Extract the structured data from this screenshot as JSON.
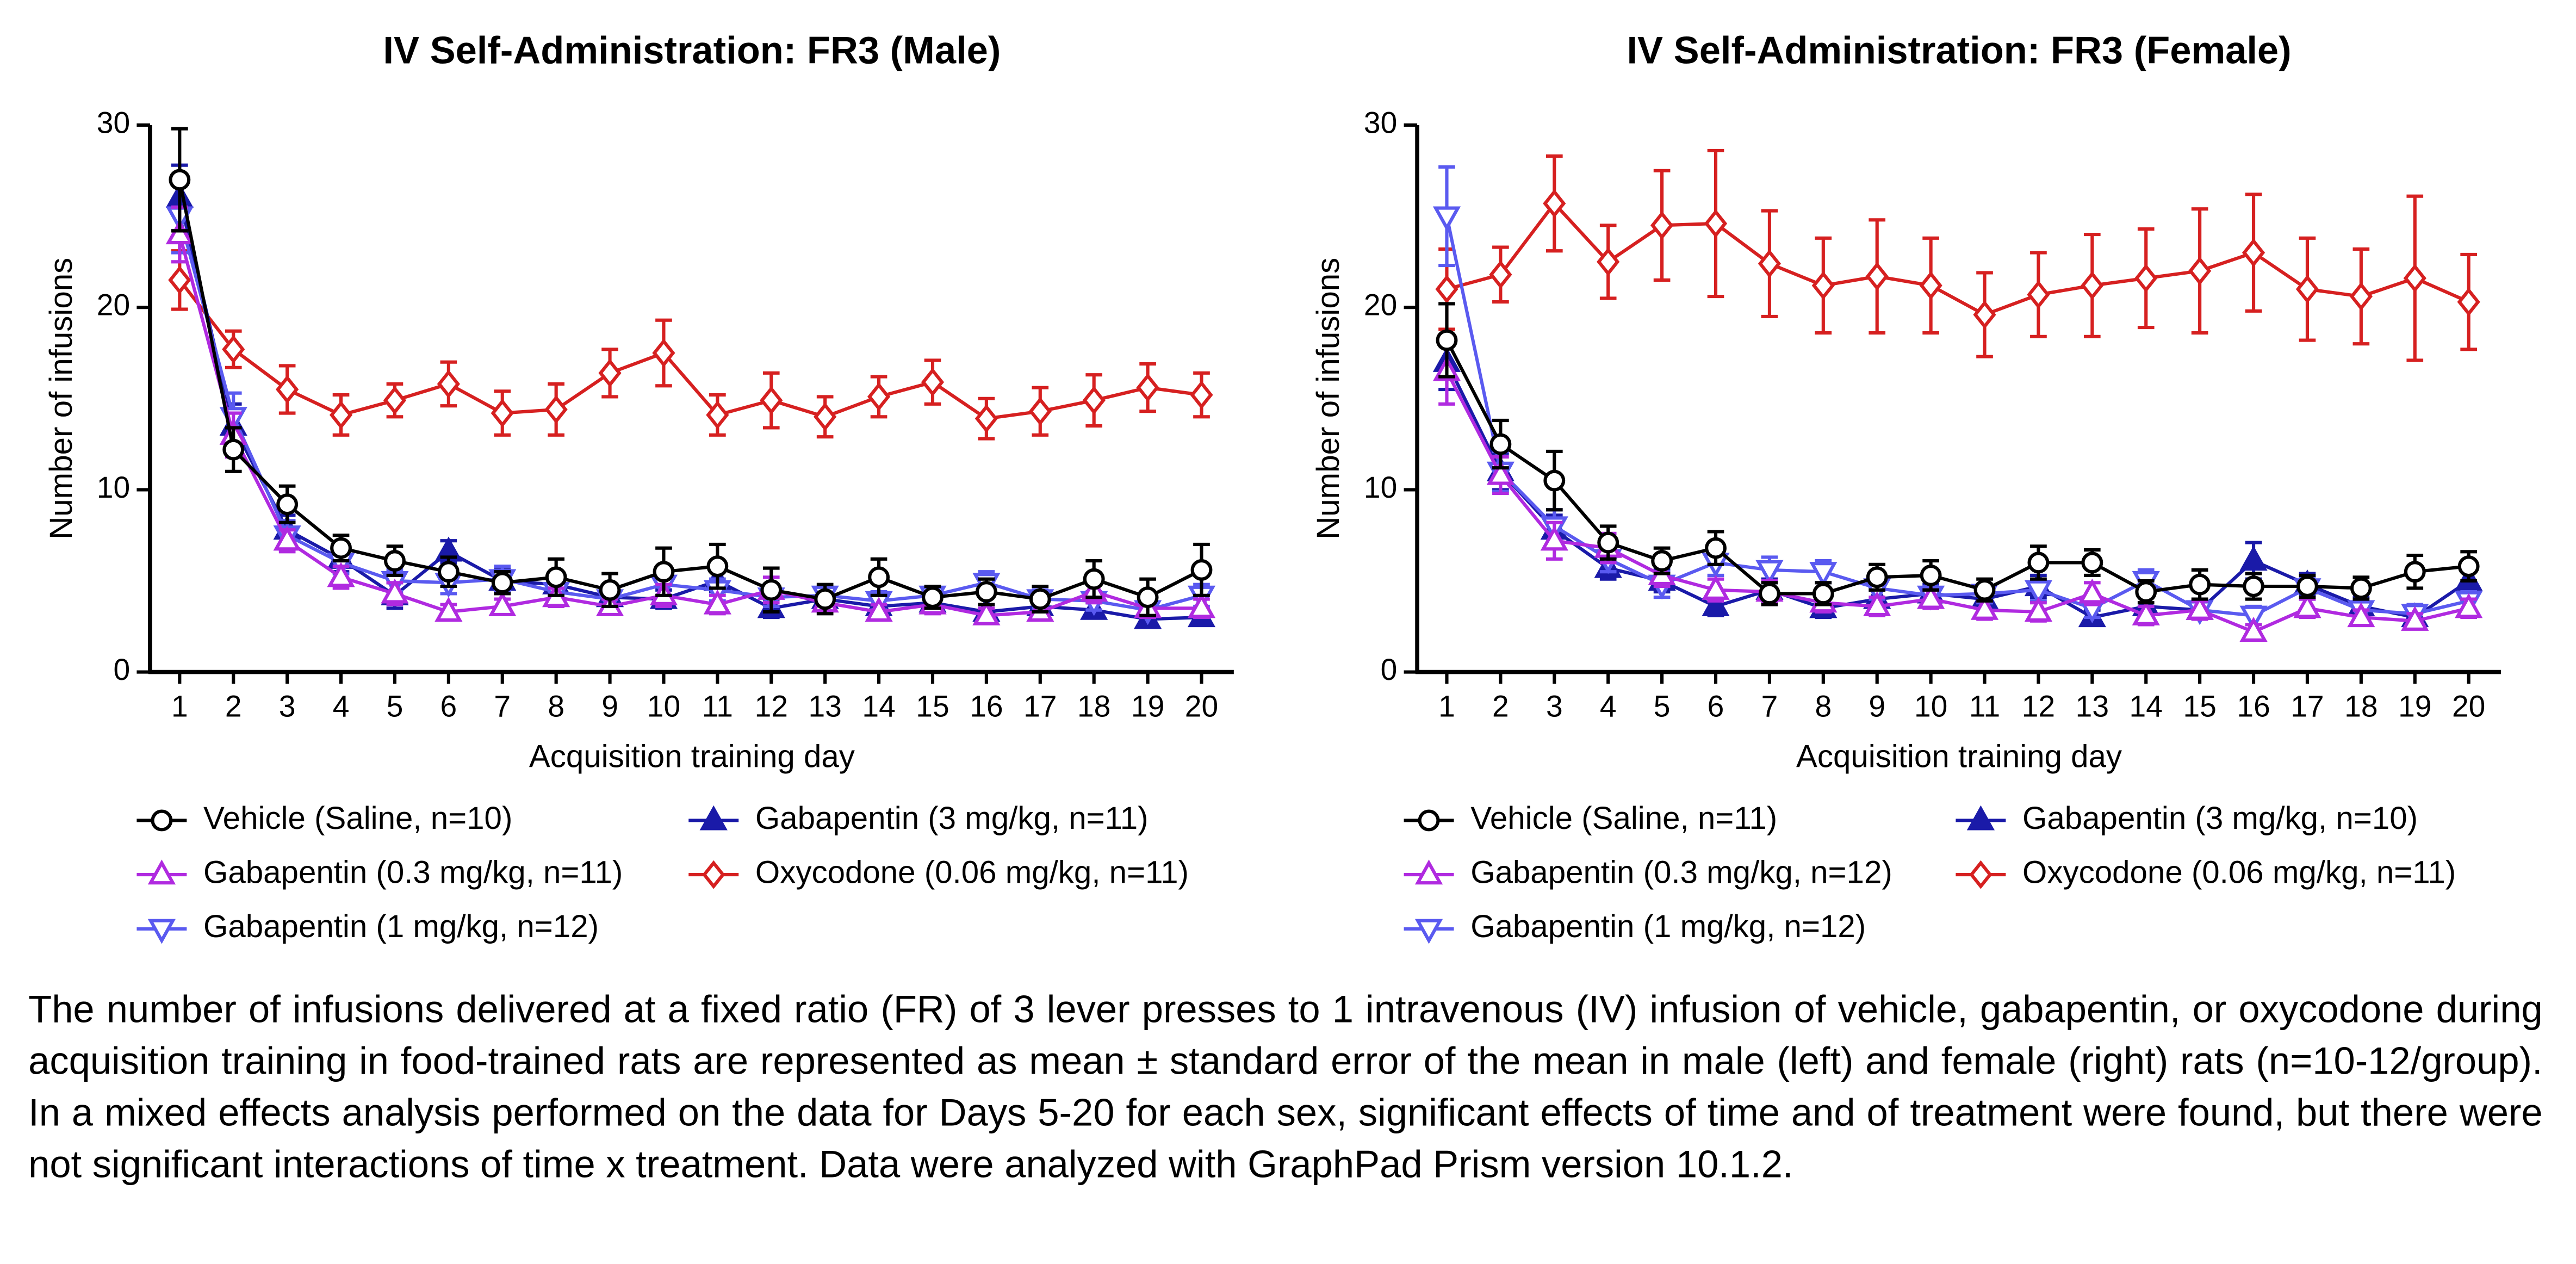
{
  "chart_data": [
    {
      "type": "line",
      "title": "IV Self-Administration: FR3 (Male)",
      "xlabel": "Acquisition training day",
      "ylabel": "Number of infusions",
      "x": [
        1,
        2,
        3,
        4,
        5,
        6,
        7,
        8,
        9,
        10,
        11,
        12,
        13,
        14,
        15,
        16,
        17,
        18,
        19,
        20
      ],
      "xlim": [
        0.45,
        20.6
      ],
      "xticks": [
        1,
        2,
        3,
        4,
        5,
        6,
        7,
        8,
        9,
        10,
        11,
        12,
        13,
        14,
        15,
        16,
        17,
        18,
        19,
        20
      ],
      "ylim": [
        0,
        30
      ],
      "yticks": [
        0,
        10,
        20,
        30
      ],
      "series": [
        {
          "name": "Vehicle (Saline, n=10)",
          "color": "#000000",
          "marker": "circle",
          "filled": false,
          "values": [
            27,
            12.2,
            9.2,
            6.8,
            6.1,
            5.5,
            4.9,
            5.2,
            4.5,
            5.5,
            5.8,
            4.5,
            4.0,
            5.2,
            4.1,
            4.4,
            4.0,
            5.1,
            4.1,
            5.6
          ],
          "errors": [
            2.8,
            1.2,
            1.0,
            0.7,
            0.8,
            0.8,
            0.6,
            1.0,
            0.9,
            1.3,
            1.2,
            1.2,
            0.8,
            1.0,
            0.6,
            0.7,
            0.7,
            1.0,
            1.0,
            1.4
          ]
        },
        {
          "name": "Gabapentin (0.3 mg/kg, n=11)",
          "color": "#b02ae0",
          "marker": "triangle-up",
          "filled": false,
          "values": [
            24,
            13,
            7.2,
            5.2,
            4.3,
            3.3,
            3.6,
            4.1,
            3.6,
            4.2,
            3.7,
            4.5,
            3.8,
            3.3,
            3.7,
            3.1,
            3.3,
            4.4,
            3.5,
            3.5
          ],
          "errors": [
            1.5,
            1.2,
            0.6,
            0.6,
            0.6,
            0.4,
            0.4,
            0.5,
            0.4,
            0.6,
            0.5,
            0.7,
            0.5,
            0.4,
            0.5,
            0.4,
            0.4,
            0.6,
            0.5,
            0.5
          ]
        },
        {
          "name": "Gabapentin (1 mg/kg, n=12)",
          "color": "#5a5af0",
          "marker": "triangle-down",
          "filled": false,
          "values": [
            25,
            14,
            7.5,
            6.0,
            5.0,
            4.9,
            5.1,
            4.4,
            4.0,
            4.8,
            4.5,
            4.1,
            4.2,
            3.9,
            4.2,
            4.9,
            4.0,
            3.9,
            3.4,
            4.2
          ],
          "errors": [
            2.0,
            1.3,
            0.8,
            0.6,
            0.6,
            0.6,
            0.7,
            0.5,
            0.5,
            0.6,
            0.6,
            0.5,
            0.5,
            0.5,
            0.5,
            0.6,
            0.5,
            0.5,
            0.4,
            0.6
          ]
        },
        {
          "name": "Gabapentin (3 mg/kg, n=11)",
          "color": "#1a1aa8",
          "marker": "triangle-up",
          "filled": true,
          "values": [
            26,
            13.5,
            7.8,
            6.2,
            4.2,
            6.6,
            5.0,
            4.8,
            4.1,
            4.0,
            5.0,
            3.5,
            4.0,
            3.6,
            3.8,
            3.3,
            3.6,
            3.4,
            2.9,
            3.0
          ],
          "errors": [
            1.8,
            1.2,
            0.8,
            0.7,
            0.7,
            0.6,
            0.6,
            0.6,
            0.5,
            0.5,
            0.6,
            0.5,
            0.5,
            0.4,
            0.5,
            0.4,
            0.5,
            0.4,
            0.4,
            0.4
          ]
        },
        {
          "name": "Oxycodone (0.06 mg/kg, n=11)",
          "color": "#d62020",
          "marker": "diamond",
          "filled": false,
          "values": [
            21.5,
            17.7,
            15.5,
            14.1,
            14.9,
            15.8,
            14.2,
            14.4,
            16.4,
            17.5,
            14.1,
            14.9,
            14.0,
            15.1,
            15.9,
            13.9,
            14.3,
            14.9,
            15.6,
            15.2
          ],
          "errors": [
            1.6,
            1.0,
            1.3,
            1.1,
            0.9,
            1.2,
            1.2,
            1.4,
            1.3,
            1.8,
            1.1,
            1.5,
            1.1,
            1.1,
            1.2,
            1.1,
            1.3,
            1.4,
            1.3,
            1.2
          ]
        }
      ]
    },
    {
      "type": "line",
      "title": "IV Self-Administration: FR3 (Female)",
      "xlabel": "Acquisition training day",
      "ylabel": "Number of infusions",
      "x": [
        1,
        2,
        3,
        4,
        5,
        6,
        7,
        8,
        9,
        10,
        11,
        12,
        13,
        14,
        15,
        16,
        17,
        18,
        19,
        20
      ],
      "xlim": [
        0.45,
        20.6
      ],
      "xticks": [
        1,
        2,
        3,
        4,
        5,
        6,
        7,
        8,
        9,
        10,
        11,
        12,
        13,
        14,
        15,
        16,
        17,
        18,
        19,
        20
      ],
      "ylim": [
        0,
        30
      ],
      "yticks": [
        0,
        10,
        20,
        30
      ],
      "series": [
        {
          "name": "Vehicle (Saline, n=11)",
          "color": "#000000",
          "marker": "circle",
          "filled": false,
          "values": [
            18.2,
            12.5,
            10.5,
            7.1,
            6.1,
            6.8,
            4.3,
            4.3,
            5.2,
            5.3,
            4.5,
            6.0,
            6.0,
            4.4,
            4.8,
            4.7,
            4.7,
            4.6,
            5.5,
            5.8
          ],
          "errors": [
            2.0,
            1.3,
            1.6,
            0.9,
            0.7,
            0.9,
            0.6,
            0.6,
            0.7,
            0.8,
            0.6,
            0.9,
            0.7,
            0.6,
            0.8,
            0.7,
            0.6,
            0.6,
            0.9,
            0.8
          ]
        },
        {
          "name": "Gabapentin (0.3 mg/kg, n=12)",
          "color": "#b02ae0",
          "marker": "triangle-up",
          "filled": false,
          "values": [
            16.5,
            10.8,
            7.2,
            6.8,
            5.3,
            4.5,
            4.4,
            3.8,
            3.6,
            4.0,
            3.4,
            3.3,
            4.3,
            3.1,
            3.4,
            2.2,
            3.5,
            3.0,
            2.8,
            3.5
          ],
          "errors": [
            1.8,
            1.0,
            1.0,
            0.8,
            0.6,
            0.6,
            0.6,
            0.5,
            0.5,
            0.5,
            0.5,
            0.5,
            0.6,
            0.5,
            0.5,
            0.4,
            0.5,
            0.4,
            0.4,
            0.5
          ]
        },
        {
          "name": "Gabapentin (1 mg/kg, n=12)",
          "color": "#5a5af0",
          "marker": "triangle-down",
          "filled": false,
          "values": [
            25,
            11,
            8,
            6.2,
            4.8,
            6.0,
            5.6,
            5.5,
            4.6,
            4.2,
            4.3,
            4.5,
            3.5,
            5.0,
            3.4,
            3.1,
            4.6,
            3.4,
            3.2,
            3.9
          ],
          "errors": [
            2.7,
            1.1,
            0.9,
            0.7,
            0.7,
            0.7,
            0.7,
            0.6,
            0.6,
            0.5,
            0.5,
            0.6,
            0.5,
            0.6,
            0.5,
            0.5,
            0.6,
            0.5,
            0.5,
            0.5
          ]
        },
        {
          "name": "Gabapentin (3 mg/kg, n=10)",
          "color": "#1a1aa8",
          "marker": "triangle-up",
          "filled": true,
          "values": [
            17,
            11,
            7.8,
            5.7,
            5.0,
            3.6,
            4.5,
            3.5,
            4.0,
            4.3,
            4.0,
            4.7,
            3.0,
            3.6,
            3.4,
            6.1,
            4.8,
            3.6,
            3.0,
            5.0
          ],
          "errors": [
            1.5,
            1.0,
            0.8,
            0.6,
            0.6,
            0.5,
            0.6,
            0.5,
            0.5,
            0.5,
            0.5,
            0.6,
            0.4,
            0.5,
            0.5,
            1.0,
            0.6,
            0.5,
            0.4,
            0.6
          ]
        },
        {
          "name": "Oxycodone (0.06 mg/kg, n=11)",
          "color": "#d62020",
          "marker": "diamond",
          "filled": false,
          "values": [
            21,
            21.8,
            25.7,
            22.5,
            24.5,
            24.6,
            22.4,
            21.2,
            21.7,
            21.2,
            19.6,
            20.7,
            21.2,
            21.6,
            22,
            23,
            21,
            20.6,
            21.6,
            20.3
          ],
          "errors": [
            2.2,
            1.5,
            2.6,
            2.0,
            3.0,
            4.0,
            2.9,
            2.6,
            3.1,
            2.6,
            2.3,
            2.3,
            2.8,
            2.7,
            3.4,
            3.2,
            2.8,
            2.6,
            4.5,
            2.6
          ]
        }
      ]
    }
  ],
  "caption": "The number of infusions delivered at a fixed ratio (FR) of 3 lever presses to 1 intravenous (IV) infusion of vehicle, gabapentin, or oxycodone during acquisition training in food-trained rats are represented as mean ± standard error of the mean in male (left) and female (right) rats (n=10-12/group). In a mixed effects analysis performed on the data for Days 5-20 for each sex, significant effects of time and of treatment were found, but there were not significant interactions of time x treatment. Data were analyzed with GraphPad Prism version 10.1.2."
}
